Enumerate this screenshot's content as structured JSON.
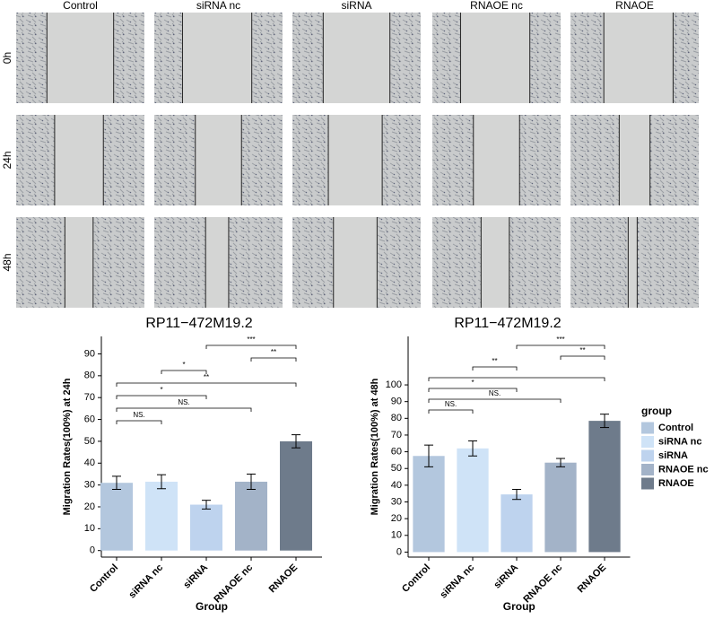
{
  "image_grid": {
    "columns": [
      "Control",
      "siRNA nc",
      "siRNA",
      "RNAOE nc",
      "RNAOE"
    ],
    "rows": [
      "0h",
      "24h",
      "48h"
    ]
  },
  "chart_data": [
    {
      "type": "bar",
      "title": "RP11−472M19.2",
      "xlabel": "Group",
      "ylabel": "Migration Rates(100%) at 24h",
      "categories": [
        "Control",
        "siRNA nc",
        "siRNA",
        "RNAOE nc",
        "RNAOE"
      ],
      "values": [
        31,
        31.5,
        21,
        31.5,
        50
      ],
      "errors": [
        3,
        3.2,
        2,
        3.5,
        3
      ],
      "colors": [
        "#b3c7de",
        "#cfe3f7",
        "#bed3ee",
        "#a3b3c8",
        "#6e7b8b"
      ],
      "ylim": [
        -3,
        98
      ],
      "yticks": [
        0,
        10,
        20,
        30,
        40,
        50,
        60,
        70,
        80,
        90
      ],
      "comparisons": [
        {
          "groups": [
            "Control",
            "siRNA nc"
          ],
          "label": "NS."
        },
        {
          "groups": [
            "Control",
            "RNAOE nc"
          ],
          "label": "NS."
        },
        {
          "groups": [
            "Control",
            "siRNA"
          ],
          "label": "*"
        },
        {
          "groups": [
            "Control",
            "RNAOE"
          ],
          "label": "**"
        },
        {
          "groups": [
            "siRNA nc",
            "siRNA"
          ],
          "label": "*"
        },
        {
          "groups": [
            "RNAOE nc",
            "RNAOE"
          ],
          "label": "**"
        },
        {
          "groups": [
            "siRNA",
            "RNAOE"
          ],
          "label": "***"
        }
      ]
    },
    {
      "type": "bar",
      "title": "RP11−472M19.2",
      "xlabel": "Group",
      "ylabel": "Migration Rates(100%) at 48h",
      "categories": [
        "Control",
        "siRNA nc",
        "siRNA",
        "RNAOE nc",
        "RNAOE"
      ],
      "values": [
        57.5,
        62,
        34.5,
        53.5,
        78.5
      ],
      "errors": [
        6.5,
        4.5,
        3,
        2.5,
        4
      ],
      "colors": [
        "#b3c7de",
        "#cfe3f7",
        "#bed3ee",
        "#a3b3c8",
        "#6e7b8b"
      ],
      "ylim": [
        -3,
        129
      ],
      "yticks": [
        0,
        10,
        20,
        30,
        40,
        50,
        60,
        70,
        80,
        90,
        100
      ],
      "legend": "right",
      "legend_title": "group",
      "comparisons": [
        {
          "groups": [
            "Control",
            "siRNA nc"
          ],
          "label": "NS."
        },
        {
          "groups": [
            "Control",
            "RNAOE nc"
          ],
          "label": "NS."
        },
        {
          "groups": [
            "Control",
            "siRNA"
          ],
          "label": "*"
        },
        {
          "groups": [
            "Control",
            "RNAOE"
          ]
        },
        {
          "groups": [
            "siRNA nc",
            "siRNA"
          ],
          "label": "**"
        },
        {
          "groups": [
            "RNAOE nc",
            "RNAOE"
          ],
          "label": "**"
        },
        {
          "groups": [
            "siRNA",
            "RNAOE"
          ],
          "label": "***"
        }
      ]
    }
  ]
}
